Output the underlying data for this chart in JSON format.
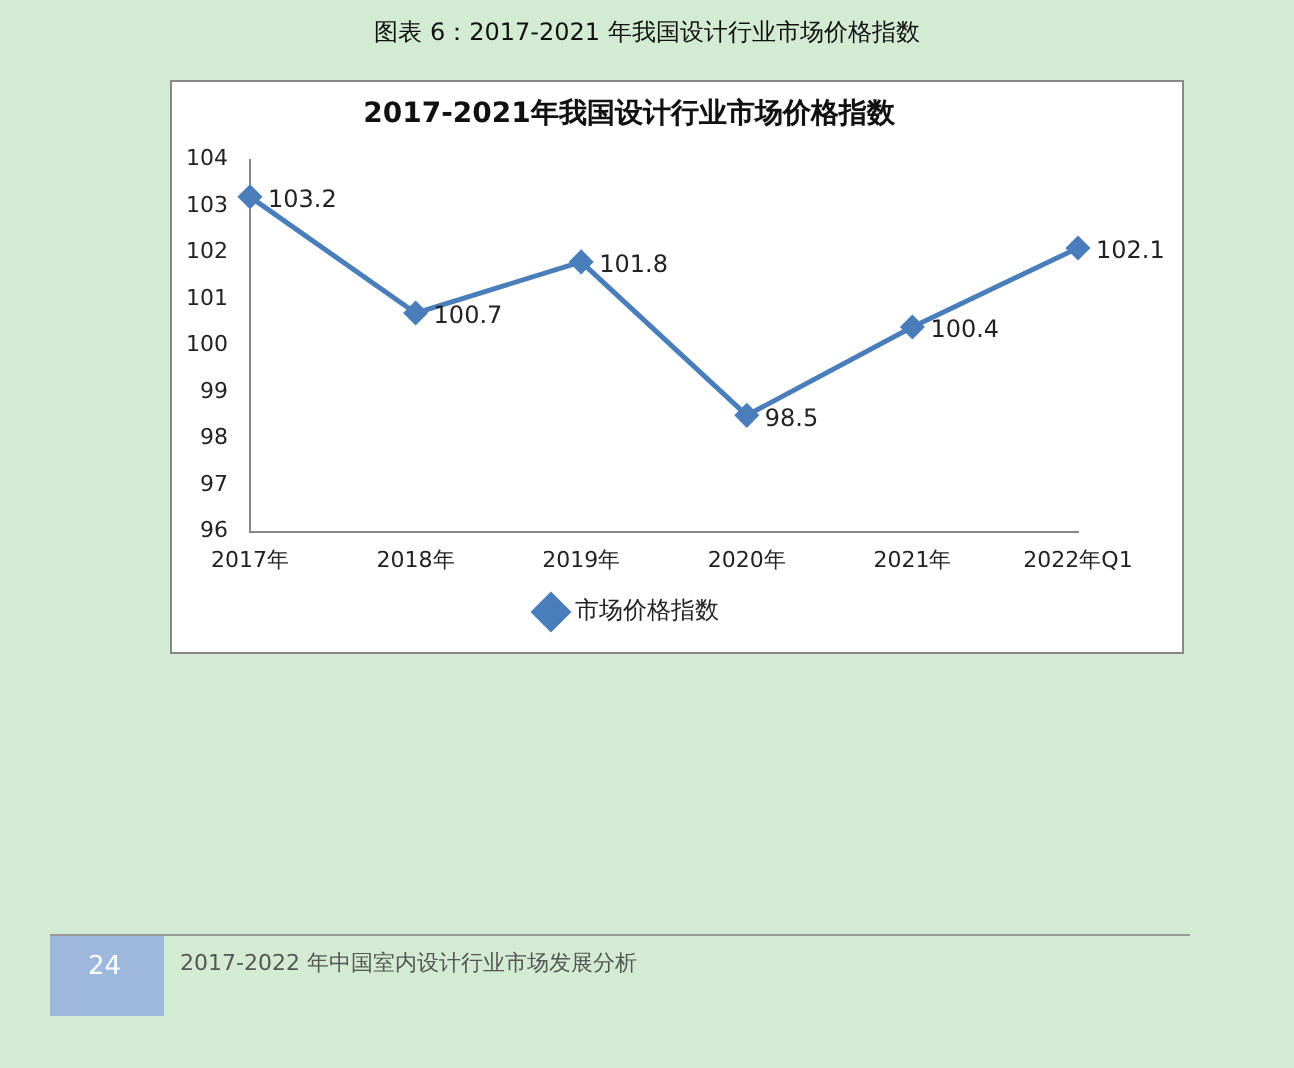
{
  "chart_data": {
    "type": "line",
    "title": "2017-2021年我国设计行业市场价格指数",
    "categories": [
      "2017年",
      "2018年",
      "2019年",
      "2020年",
      "2021年",
      "2022年Q1"
    ],
    "series": [
      {
        "name": "市场价格指数",
        "color": "#4a7ebb",
        "values": [
          103.2,
          100.7,
          101.8,
          98.5,
          100.4,
          102.1
        ]
      }
    ],
    "ylim": [
      96,
      104
    ],
    "yticks": [
      96,
      97,
      98,
      99,
      100,
      101,
      102,
      103,
      104
    ],
    "data_labels": true,
    "legend": "bottom",
    "marker": "diamond",
    "line_style": "solid",
    "grid": false,
    "annotations": [
      "图表 6：2017-2021 年我国设计行业市场价格指数",
      "24",
      "2017-2022 年中国室内设计行业市场发展分析"
    ]
  }
}
